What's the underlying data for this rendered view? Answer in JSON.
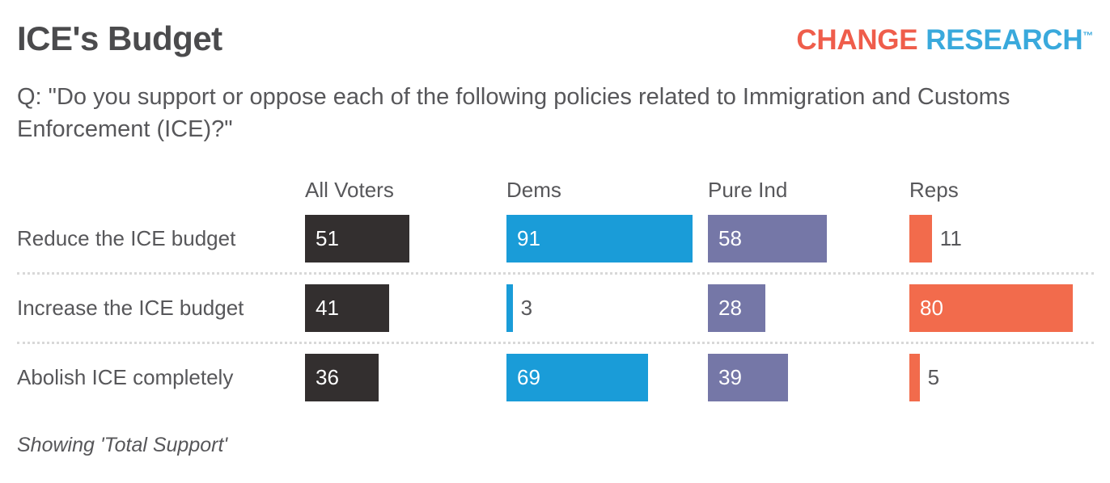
{
  "header": {
    "title": "ICE's Budget",
    "logo": {
      "part1": "CHANGE",
      "part2": "RESEARCH",
      "tm": "™",
      "part1_color": "#ef5d4b",
      "part2_color": "#39a9dc"
    }
  },
  "question": "Q: \"Do you support or oppose each of the following policies related to Immigration and Customs Enforcement (ICE)?\"",
  "footer": "Showing 'Total Support'",
  "chart_data": {
    "type": "bar",
    "orientation": "horizontal",
    "title": "ICE's Budget",
    "categories": [
      "Reduce the ICE budget",
      "Increase the ICE budget",
      "Abolish ICE completely"
    ],
    "groups": [
      "All Voters",
      "Dems",
      "Pure Ind",
      "Reps"
    ],
    "series": [
      {
        "name": "All Voters",
        "color": "#332f2f",
        "values": [
          51,
          41,
          36
        ]
      },
      {
        "name": "Dems",
        "color": "#1a9cd8",
        "values": [
          91,
          3,
          69
        ]
      },
      {
        "name": "Pure Ind",
        "color": "#7577a7",
        "values": [
          58,
          28,
          39
        ]
      },
      {
        "name": "Reps",
        "color": "#f26b4c",
        "values": [
          11,
          80,
          5
        ]
      }
    ],
    "xlim": [
      0,
      100
    ],
    "value_labels": "shown on each bar; labels for small bars placed outside in gray",
    "grid": "off",
    "legend": "column headers above each group",
    "row_separator": "dotted line between rows"
  }
}
